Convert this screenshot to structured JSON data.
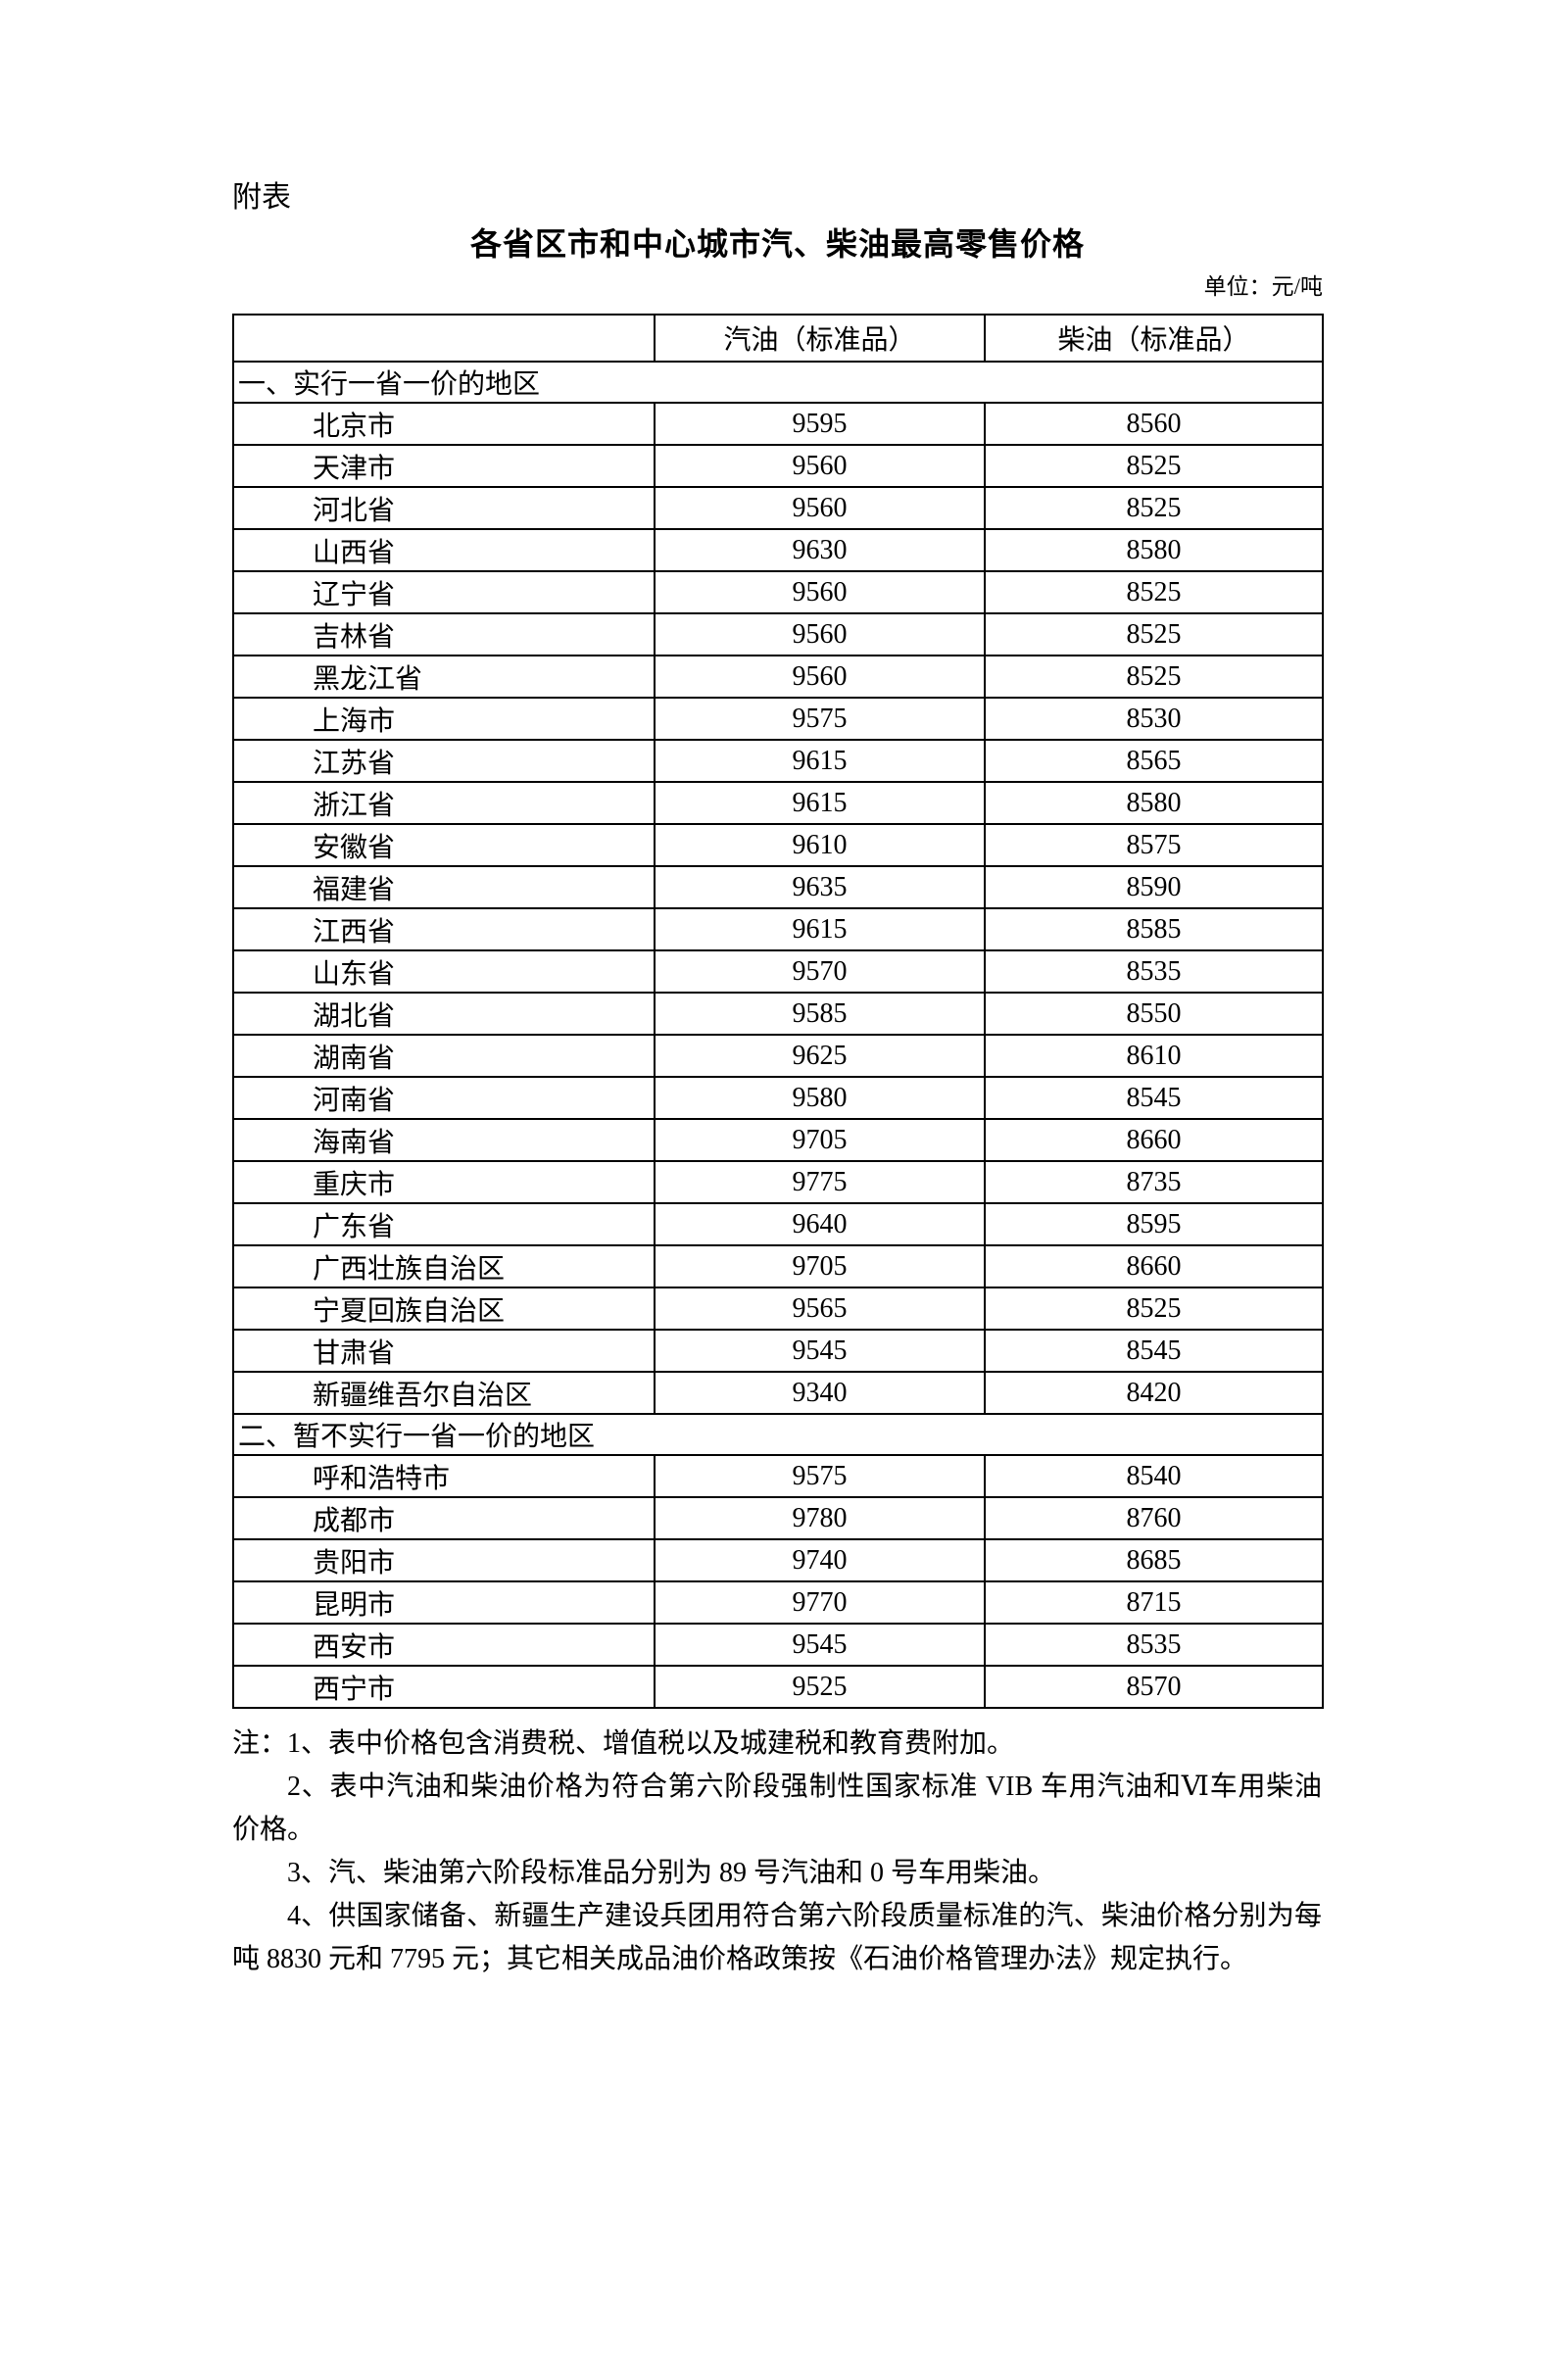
{
  "page": {
    "annex_label": "附表",
    "title": "各省区市和中心城市汽、柴油最高零售价格",
    "unit_label": "单位：元/吨"
  },
  "table": {
    "header": [
      "",
      "汽油（标准品）",
      "柴油（标准品）"
    ],
    "sections": [
      {
        "title": "一、实行一省一价的地区",
        "rows": [
          {
            "region": "北京市",
            "gasoline": "9595",
            "diesel": "8560"
          },
          {
            "region": "天津市",
            "gasoline": "9560",
            "diesel": "8525"
          },
          {
            "region": "河北省",
            "gasoline": "9560",
            "diesel": "8525"
          },
          {
            "region": "山西省",
            "gasoline": "9630",
            "diesel": "8580"
          },
          {
            "region": "辽宁省",
            "gasoline": "9560",
            "diesel": "8525"
          },
          {
            "region": "吉林省",
            "gasoline": "9560",
            "diesel": "8525"
          },
          {
            "region": "黑龙江省",
            "gasoline": "9560",
            "diesel": "8525"
          },
          {
            "region": "上海市",
            "gasoline": "9575",
            "diesel": "8530"
          },
          {
            "region": "江苏省",
            "gasoline": "9615",
            "diesel": "8565"
          },
          {
            "region": "浙江省",
            "gasoline": "9615",
            "diesel": "8580"
          },
          {
            "region": "安徽省",
            "gasoline": "9610",
            "diesel": "8575"
          },
          {
            "region": "福建省",
            "gasoline": "9635",
            "diesel": "8590"
          },
          {
            "region": "江西省",
            "gasoline": "9615",
            "diesel": "8585"
          },
          {
            "region": "山东省",
            "gasoline": "9570",
            "diesel": "8535"
          },
          {
            "region": "湖北省",
            "gasoline": "9585",
            "diesel": "8550"
          },
          {
            "region": "湖南省",
            "gasoline": "9625",
            "diesel": "8610"
          },
          {
            "region": "河南省",
            "gasoline": "9580",
            "diesel": "8545"
          },
          {
            "region": "海南省",
            "gasoline": "9705",
            "diesel": "8660"
          },
          {
            "region": "重庆市",
            "gasoline": "9775",
            "diesel": "8735"
          },
          {
            "region": "广东省",
            "gasoline": "9640",
            "diesel": "8595"
          },
          {
            "region": "广西壮族自治区",
            "gasoline": "9705",
            "diesel": "8660"
          },
          {
            "region": "宁夏回族自治区",
            "gasoline": "9565",
            "diesel": "8525"
          },
          {
            "region": "甘肃省",
            "gasoline": "9545",
            "diesel": "8545"
          },
          {
            "region": "新疆维吾尔自治区",
            "gasoline": "9340",
            "diesel": "8420"
          }
        ]
      },
      {
        "title": "二、暂不实行一省一价的地区",
        "rows": [
          {
            "region": "呼和浩特市",
            "gasoline": "9575",
            "diesel": "8540"
          },
          {
            "region": "成都市",
            "gasoline": "9780",
            "diesel": "8760"
          },
          {
            "region": "贵阳市",
            "gasoline": "9740",
            "diesel": "8685"
          },
          {
            "region": "昆明市",
            "gasoline": "9770",
            "diesel": "8715"
          },
          {
            "region": "西安市",
            "gasoline": "9545",
            "diesel": "8535"
          },
          {
            "region": "西宁市",
            "gasoline": "9525",
            "diesel": "8570"
          }
        ]
      }
    ]
  },
  "notes": {
    "lines": [
      {
        "text": "注：1、表中价格包含消费税、增值税以及城建税和教育费附加。",
        "indented": false
      },
      {
        "text": "2、表中汽油和柴油价格为符合第六阶段强制性国家标准 VIB 车用汽油和Ⅵ车用柴油价格。",
        "indented": true
      },
      {
        "text": "3、汽、柴油第六阶段标准品分别为 89 号汽油和 0 号车用柴油。",
        "indented": true
      },
      {
        "text": "4、供国家储备、新疆生产建设兵团用符合第六阶段质量标准的汽、柴油价格分别为每吨 8830 元和 7795 元；其它相关成品油价格政策按《石油价格管理办法》规定执行。",
        "indented": true
      }
    ]
  }
}
